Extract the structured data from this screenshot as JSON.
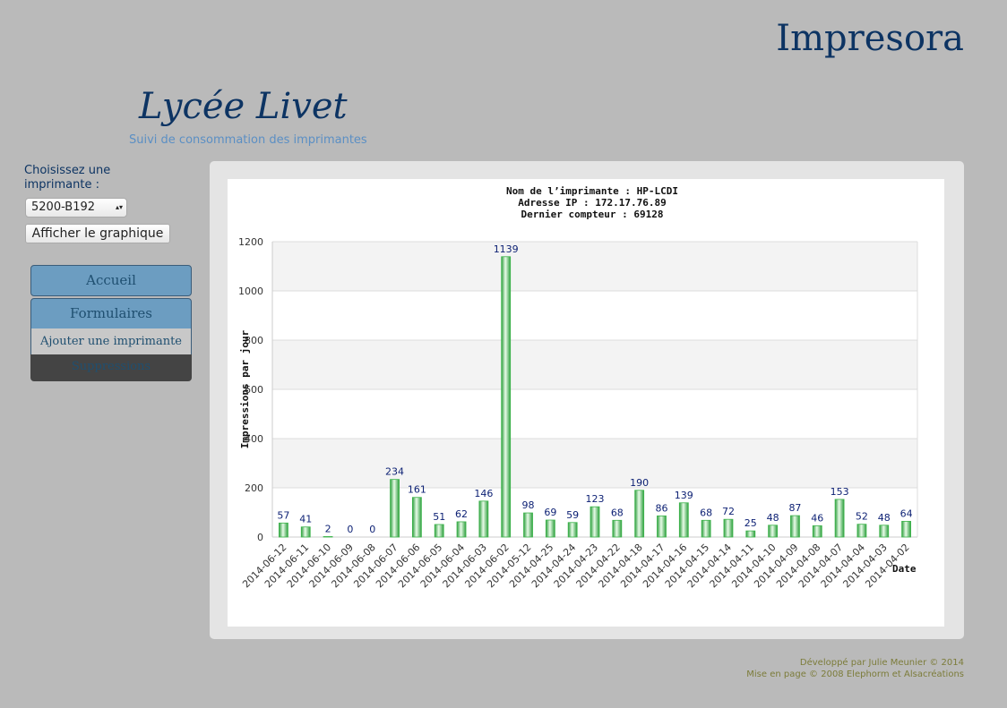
{
  "header": {
    "site_title": "Impresora",
    "school": "Lycée Livet",
    "subtitle": "Suivi de consommation des imprimantes"
  },
  "sidebar": {
    "select_label": "Choisissez une imprimante :",
    "select_value": "5200-B192",
    "button": "Afficher le graphique",
    "menu": [
      "Accueil",
      "Formulaires",
      "Ajouter une imprimante",
      "Suppressions"
    ]
  },
  "footer": [
    "Développé par Julie Meunier © 2014",
    "Mise en page © 2008 Elephorm et Alsacréations"
  ],
  "chart_data": {
    "type": "bar",
    "title": [
      "Nom de l’imprimante : HP-LCDI",
      "Adresse IP : 172.17.76.89",
      "Dernier compteur : 69128"
    ],
    "y_label": "Impressions par jour",
    "x_label": "Date",
    "categories": [
      "2014-06-12",
      "2014-06-11",
      "2014-06-10",
      "2014-06-09",
      "2014-06-08",
      "2014-06-07",
      "2014-06-06",
      "2014-06-05",
      "2014-06-04",
      "2014-06-03",
      "2014-06-02",
      "2014-05-12",
      "2014-04-25",
      "2014-04-24",
      "2014-04-23",
      "2014-04-22",
      "2014-04-18",
      "2014-04-17",
      "2014-04-16",
      "2014-04-15",
      "2014-04-14",
      "2014-04-11",
      "2014-04-10",
      "2014-04-09",
      "2014-04-08",
      "2014-04-07",
      "2014-04-04",
      "2014-04-03",
      "2014-04-02"
    ],
    "values": [
      57,
      41,
      2,
      0,
      0,
      234,
      161,
      51,
      62,
      146,
      1139,
      98,
      69,
      59,
      123,
      68,
      190,
      86,
      139,
      68,
      72,
      25,
      48,
      87,
      46,
      153,
      52,
      48,
      64
    ],
    "color": "#3cb44a",
    "ylim": [
      0,
      1200
    ],
    "yticks": [
      0,
      200,
      400,
      600,
      800,
      1000,
      1200
    ],
    "grid": true
  }
}
